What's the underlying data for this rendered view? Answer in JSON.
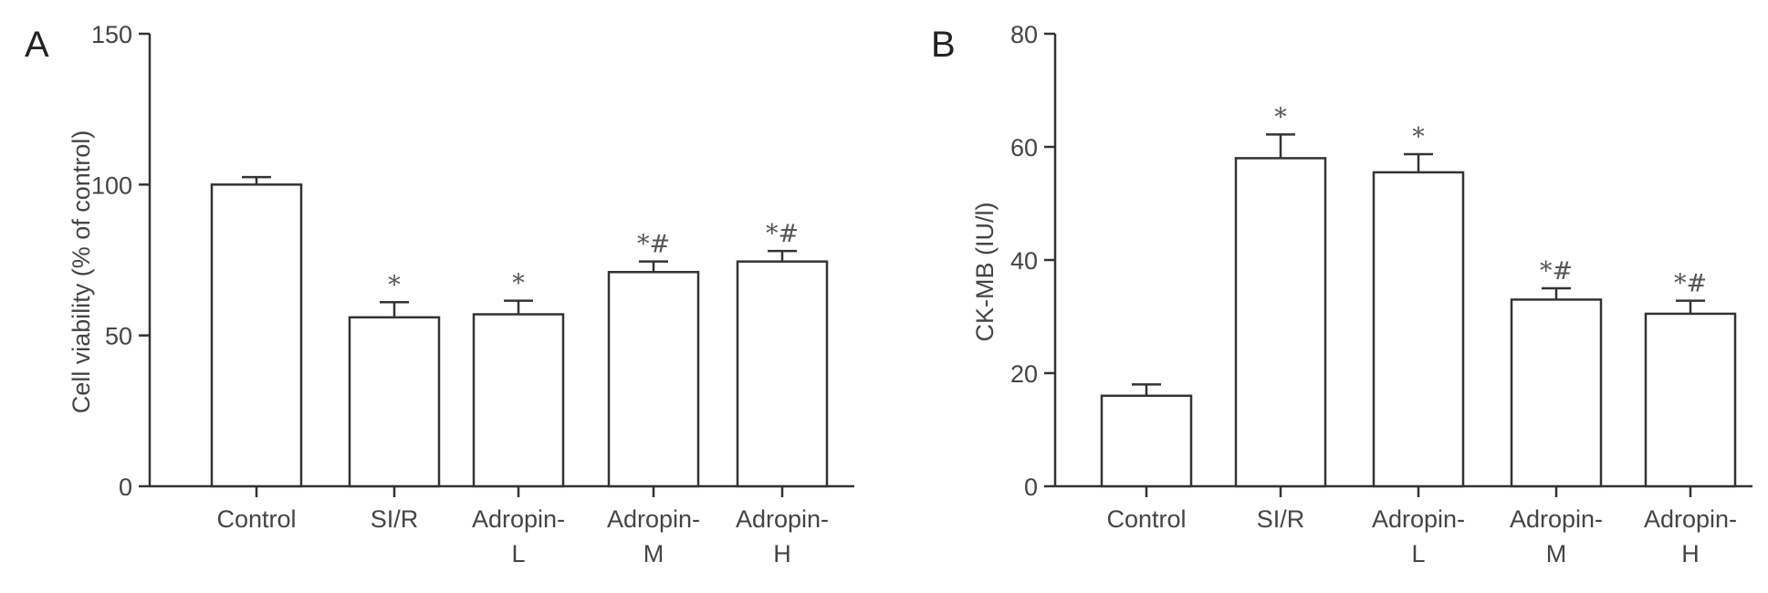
{
  "chart_data": [
    {
      "type": "bar",
      "panel_label": "A",
      "title": "",
      "xlabel": "",
      "ylabel": "Cell viability (% of control)",
      "ylim": [
        0,
        150
      ],
      "yticks": [
        "0",
        "50",
        "100",
        "150"
      ],
      "categories": [
        {
          "lines": [
            "Control"
          ]
        },
        {
          "lines": [
            "SI/R"
          ]
        },
        {
          "lines": [
            "Adropin-",
            "L"
          ]
        },
        {
          "lines": [
            "Adropin-",
            "M"
          ]
        },
        {
          "lines": [
            "Adropin-",
            "H"
          ]
        }
      ],
      "values": [
        100,
        56,
        57,
        71,
        74.5
      ],
      "errors": [
        2.5,
        5,
        4.5,
        3.5,
        3.5
      ],
      "annotations": [
        "",
        "*",
        "*",
        "*#",
        "*#"
      ],
      "grid": false,
      "legend": "none"
    },
    {
      "type": "bar",
      "panel_label": "B",
      "title": "",
      "xlabel": "",
      "ylabel": "CK-MB (IU/l)",
      "ylim": [
        0,
        80
      ],
      "yticks": [
        "0",
        "20",
        "40",
        "60",
        "80"
      ],
      "categories": [
        {
          "lines": [
            "Control"
          ]
        },
        {
          "lines": [
            "SI/R"
          ]
        },
        {
          "lines": [
            "Adropin-",
            "L"
          ]
        },
        {
          "lines": [
            "Adropin-",
            "M"
          ]
        },
        {
          "lines": [
            "Adropin-",
            "H"
          ]
        }
      ],
      "values": [
        16,
        58,
        55.5,
        33,
        30.5
      ],
      "errors": [
        2,
        4.2,
        3.2,
        2,
        2.3
      ],
      "annotations": [
        "",
        "*",
        "*",
        "*#",
        "*#"
      ],
      "grid": false,
      "legend": "none"
    }
  ]
}
